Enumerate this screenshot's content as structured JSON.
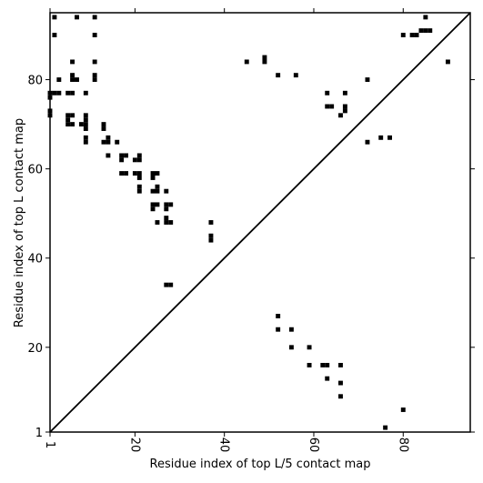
{
  "chart_data": {
    "type": "scatter",
    "xlabel": "Residue index of top L/5 contact map",
    "ylabel": "Residue index of top L contact map",
    "xlim": [
      1,
      95
    ],
    "ylim": [
      1,
      95
    ],
    "xticks": [
      1,
      20,
      40,
      60,
      80
    ],
    "yticks": [
      1,
      20,
      40,
      60,
      80
    ],
    "diagonal": true,
    "marker_color": "#000000",
    "series": [
      {
        "values": [
          [
            2,
            94
          ],
          [
            7,
            94
          ],
          [
            11,
            94
          ],
          [
            85,
            94
          ],
          [
            2,
            90
          ],
          [
            11,
            90
          ],
          [
            84,
            91
          ],
          [
            86,
            91
          ],
          [
            85,
            91
          ],
          [
            82,
            90
          ],
          [
            83,
            90
          ],
          [
            6,
            84
          ],
          [
            11,
            84
          ],
          [
            6,
            81
          ],
          [
            11,
            81
          ],
          [
            6,
            80
          ],
          [
            7,
            80
          ],
          [
            11,
            80
          ],
          [
            3,
            80
          ],
          [
            2,
            77
          ],
          [
            1,
            77
          ],
          [
            3,
            77
          ],
          [
            5,
            77
          ],
          [
            6,
            77
          ],
          [
            9,
            77
          ],
          [
            1,
            76
          ],
          [
            1,
            73
          ],
          [
            1,
            72
          ],
          [
            5,
            72
          ],
          [
            6,
            72
          ],
          [
            9,
            72
          ],
          [
            5,
            71
          ],
          [
            9,
            71
          ],
          [
            5,
            70
          ],
          [
            6,
            70
          ],
          [
            8,
            70
          ],
          [
            9,
            70
          ],
          [
            9,
            69
          ],
          [
            13,
            70
          ],
          [
            13,
            69
          ],
          [
            9,
            67
          ],
          [
            9,
            66
          ],
          [
            13,
            66
          ],
          [
            14,
            66
          ],
          [
            14,
            67
          ],
          [
            16,
            66
          ],
          [
            14,
            63
          ],
          [
            17,
            63
          ],
          [
            18,
            63
          ],
          [
            21,
            63
          ],
          [
            17,
            62
          ],
          [
            20,
            62
          ],
          [
            21,
            62
          ],
          [
            17,
            59
          ],
          [
            18,
            59
          ],
          [
            20,
            59
          ],
          [
            21,
            59
          ],
          [
            24,
            59
          ],
          [
            25,
            59
          ],
          [
            21,
            58
          ],
          [
            24,
            58
          ],
          [
            21,
            56
          ],
          [
            21,
            55
          ],
          [
            24,
            55
          ],
          [
            25,
            55
          ],
          [
            25,
            56
          ],
          [
            27,
            55
          ],
          [
            24,
            52
          ],
          [
            25,
            52
          ],
          [
            27,
            52
          ],
          [
            28,
            52
          ],
          [
            24,
            51
          ],
          [
            27,
            51
          ],
          [
            27,
            49
          ],
          [
            27,
            48
          ],
          [
            28,
            48
          ],
          [
            25,
            48
          ],
          [
            27,
            34
          ],
          [
            28,
            34
          ],
          [
            37,
            48
          ],
          [
            37,
            45
          ],
          [
            37,
            44
          ],
          [
            45,
            84
          ],
          [
            49,
            85
          ],
          [
            49,
            84
          ],
          [
            52,
            81
          ],
          [
            56,
            81
          ],
          [
            63,
            77
          ],
          [
            67,
            77
          ],
          [
            63,
            74
          ],
          [
            64,
            74
          ],
          [
            67,
            74
          ],
          [
            67,
            73
          ],
          [
            66,
            72
          ],
          [
            72,
            80
          ],
          [
            72,
            66
          ],
          [
            75,
            67
          ],
          [
            77,
            67
          ],
          [
            80,
            90
          ],
          [
            90,
            84
          ],
          [
            52,
            27
          ],
          [
            52,
            24
          ],
          [
            55,
            24
          ],
          [
            55,
            20
          ],
          [
            59,
            20
          ],
          [
            59,
            16
          ],
          [
            62,
            16
          ],
          [
            63,
            16
          ],
          [
            66,
            16
          ],
          [
            63,
            13
          ],
          [
            66,
            12
          ],
          [
            66,
            9
          ],
          [
            80,
            6
          ],
          [
            76,
            2
          ]
        ]
      }
    ]
  }
}
